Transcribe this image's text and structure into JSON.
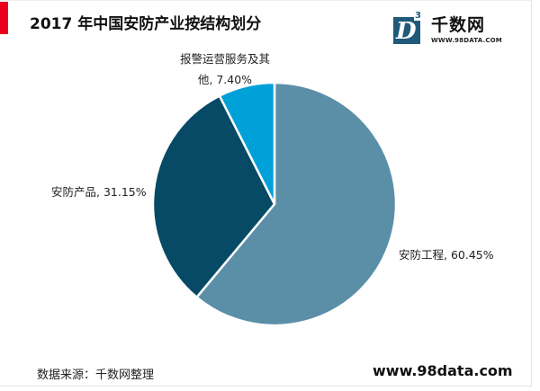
{
  "header": {
    "title": "2017 年中国安防产业按结构划分",
    "accent_color": "#e8001c"
  },
  "logo": {
    "mark_letter": "D",
    "mark_superscript": "3",
    "name": "千数网",
    "url_text": "WWW.98DATA.COM",
    "color": "#1f5a7a"
  },
  "chart_data": {
    "type": "pie",
    "title": "2017 年中国安防产业按结构划分",
    "categories": [
      "安防工程",
      "安防产品",
      "报警运营服务及其他"
    ],
    "values": [
      60.45,
      31.15,
      7.4
    ],
    "unit": "%",
    "colors": [
      "#5b8fa8",
      "#064a66",
      "#00a0d8"
    ],
    "labels": [
      {
        "text": "安防工程, 60.45%"
      },
      {
        "text": "安防产品, 31.15%"
      },
      {
        "line1": "报警运营服务及其",
        "line2": "他, 7.40%"
      }
    ],
    "start_angle_deg": 0,
    "direction": "clockwise",
    "legend": "none"
  },
  "footer": {
    "source": "数据来源：千数网整理",
    "site": "www.98data.com"
  }
}
